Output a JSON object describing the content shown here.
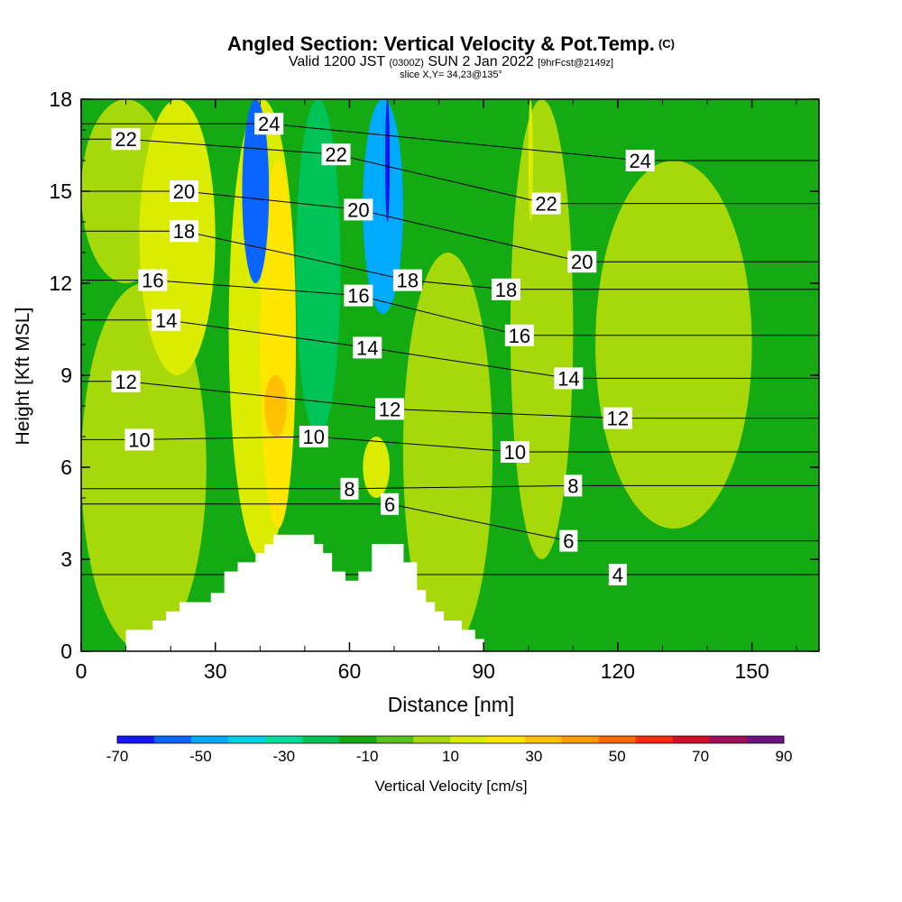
{
  "header": {
    "title": "Angled Section: Vertical Velocity & Pot.Temp.",
    "title_units": "(C)",
    "valid_prefix": "Valid 1200 JST",
    "valid_utc": "(0300Z)",
    "valid_date": "SUN 2 Jan 2022",
    "forecast": "[9hrFcst@2149z]",
    "slice": "slice X,Y= 34,23@135°"
  },
  "colorbar": {
    "title": "Vertical Velocity [cm/s]",
    "tick_labels": [
      "-70",
      "-50",
      "-30",
      "-10",
      "10",
      "30",
      "50",
      "70",
      "90"
    ],
    "colors": [
      "#1414ff",
      "#0a64ff",
      "#00aaff",
      "#00d2e6",
      "#00dc9b",
      "#00c357",
      "#14aa14",
      "#5ac21e",
      "#a6d80a",
      "#dcec00",
      "#ffe600",
      "#ffc000",
      "#ff9a00",
      "#ff6a00",
      "#ff2a10",
      "#d20f2a",
      "#a0105a",
      "#6e1282"
    ]
  },
  "chart_data": {
    "type": "heatmap",
    "title": "Angled Section: Vertical Velocity & Pot.Temp. (C)",
    "xlabel": "Distance [nm]",
    "ylabel": "Height [Kft MSL]",
    "xlim": [
      0,
      165
    ],
    "ylim": [
      0,
      18
    ],
    "x_ticks": [
      0,
      30,
      60,
      90,
      120,
      150
    ],
    "y_ticks": [
      0,
      3,
      6,
      9,
      12,
      15,
      18
    ],
    "colorbar_range": [
      -70,
      90
    ],
    "colorbar_ticks": [
      -70,
      -50,
      -30,
      -10,
      10,
      30,
      50,
      70,
      90
    ],
    "velocity_regions": [
      {
        "value": -15,
        "x": [
          0,
          165
        ],
        "y": [
          0,
          18
        ],
        "note": "background green"
      },
      {
        "value": 5,
        "x": [
          0,
          28
        ],
        "y": [
          0,
          12
        ]
      },
      {
        "value": 5,
        "x": [
          0,
          20
        ],
        "y": [
          12,
          18
        ]
      },
      {
        "value": 15,
        "x": [
          13,
          30
        ],
        "y": [
          9,
          18
        ]
      },
      {
        "value": 15,
        "x": [
          33,
          48
        ],
        "y": [
          3,
          18
        ]
      },
      {
        "value": 25,
        "x": [
          40,
          48
        ],
        "y": [
          4,
          16
        ]
      },
      {
        "value": 35,
        "x": [
          41,
          46
        ],
        "y": [
          7,
          9
        ]
      },
      {
        "value": -55,
        "x": [
          36,
          42
        ],
        "y": [
          12,
          18
        ]
      },
      {
        "value": -45,
        "x": [
          63,
          72
        ],
        "y": [
          11,
          18
        ]
      },
      {
        "value": -65,
        "x": [
          68,
          69
        ],
        "y": [
          14,
          18
        ]
      },
      {
        "value": -25,
        "x": [
          48,
          58
        ],
        "y": [
          7,
          18
        ]
      },
      {
        "value": 5,
        "x": [
          72,
          92
        ],
        "y": [
          0,
          13
        ]
      },
      {
        "value": 5,
        "x": [
          96,
          110
        ],
        "y": [
          3,
          18
        ]
      },
      {
        "value": 5,
        "x": [
          115,
          150
        ],
        "y": [
          4,
          16
        ]
      },
      {
        "value": 15,
        "x": [
          63,
          69
        ],
        "y": [
          5,
          7
        ]
      },
      {
        "value": 15,
        "x": [
          100,
          101
        ],
        "y": [
          14,
          18
        ]
      },
      {
        "value": -15,
        "x": [
          150,
          165
        ],
        "y": [
          9,
          18
        ]
      }
    ],
    "terrain_blocks": [
      {
        "x": [
          10,
          16
        ],
        "top": 0.7
      },
      {
        "x": [
          16,
          19
        ],
        "top": 1.0
      },
      {
        "x": [
          19,
          22
        ],
        "top": 1.3
      },
      {
        "x": [
          22,
          24
        ],
        "top": 1.6
      },
      {
        "x": [
          24,
          29
        ],
        "top": 1.6
      },
      {
        "x": [
          29,
          32
        ],
        "top": 1.9
      },
      {
        "x": [
          32,
          35
        ],
        "top": 2.6
      },
      {
        "x": [
          35,
          39
        ],
        "top": 2.9
      },
      {
        "x": [
          39,
          41
        ],
        "top": 3.2
      },
      {
        "x": [
          41,
          43
        ],
        "top": 3.5
      },
      {
        "x": [
          43,
          47
        ],
        "top": 3.8
      },
      {
        "x": [
          47,
          52
        ],
        "top": 3.8
      },
      {
        "x": [
          52,
          54
        ],
        "top": 3.5
      },
      {
        "x": [
          54,
          56
        ],
        "top": 3.2
      },
      {
        "x": [
          56,
          59
        ],
        "top": 2.6
      },
      {
        "x": [
          59,
          62
        ],
        "top": 2.3
      },
      {
        "x": [
          62,
          65
        ],
        "top": 2.6
      },
      {
        "x": [
          65,
          72
        ],
        "top": 3.5
      },
      {
        "x": [
          72,
          75
        ],
        "top": 2.9
      },
      {
        "x": [
          75,
          77
        ],
        "top": 2.0
      },
      {
        "x": [
          77,
          79
        ],
        "top": 1.6
      },
      {
        "x": [
          79,
          81
        ],
        "top": 1.3
      },
      {
        "x": [
          81,
          85
        ],
        "top": 1.0
      },
      {
        "x": [
          85,
          88
        ],
        "top": 0.7
      },
      {
        "x": [
          88,
          90
        ],
        "top": 0.4
      }
    ],
    "theta_contour_labels": [
      {
        "label": "24",
        "x": 42,
        "y": 17.2
      },
      {
        "label": "22",
        "x": 10,
        "y": 16.7
      },
      {
        "label": "22",
        "x": 57,
        "y": 16.2
      },
      {
        "label": "24",
        "x": 125,
        "y": 16.0
      },
      {
        "label": "20",
        "x": 23,
        "y": 15.0
      },
      {
        "label": "22",
        "x": 104,
        "y": 14.6
      },
      {
        "label": "20",
        "x": 62,
        "y": 14.4
      },
      {
        "label": "18",
        "x": 23,
        "y": 13.7
      },
      {
        "label": "20",
        "x": 112,
        "y": 12.7
      },
      {
        "label": "16",
        "x": 16,
        "y": 12.1
      },
      {
        "label": "18",
        "x": 73,
        "y": 12.1
      },
      {
        "label": "18",
        "x": 95,
        "y": 11.8
      },
      {
        "label": "16",
        "x": 62,
        "y": 11.6
      },
      {
        "label": "14",
        "x": 19,
        "y": 10.8
      },
      {
        "label": "16",
        "x": 98,
        "y": 10.3
      },
      {
        "label": "14",
        "x": 64,
        "y": 9.9
      },
      {
        "label": "14",
        "x": 109,
        "y": 8.9
      },
      {
        "label": "12",
        "x": 10,
        "y": 8.8
      },
      {
        "label": "12",
        "x": 69,
        "y": 7.9
      },
      {
        "label": "12",
        "x": 120,
        "y": 7.6
      },
      {
        "label": "10",
        "x": 13,
        "y": 6.9
      },
      {
        "label": "10",
        "x": 52,
        "y": 7.0
      },
      {
        "label": "10",
        "x": 97,
        "y": 6.5
      },
      {
        "label": "8",
        "x": 60,
        "y": 5.3
      },
      {
        "label": "8",
        "x": 110,
        "y": 5.4
      },
      {
        "label": "6",
        "x": 69,
        "y": 4.8
      },
      {
        "label": "6",
        "x": 109,
        "y": 3.6
      },
      {
        "label": "4",
        "x": 120,
        "y": 2.5
      }
    ]
  }
}
